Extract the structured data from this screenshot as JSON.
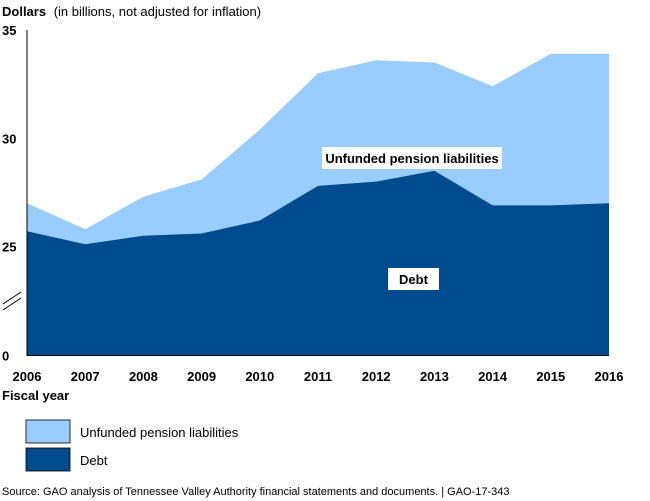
{
  "chart_data": {
    "type": "area",
    "stacked": true,
    "ylabel_bold": "Dollars",
    "ylabel_rest": "(in billions, not adjusted for inflation)",
    "xlabel": "Fiscal year",
    "categories": [
      "2006",
      "2007",
      "2008",
      "2009",
      "2010",
      "2011",
      "2012",
      "2013",
      "2014",
      "2015",
      "2016"
    ],
    "y_ticks": [
      "35",
      "30",
      "25",
      "0"
    ],
    "axis_segments": [
      {
        "from": 0,
        "to": 0,
        "label": "0"
      },
      {
        "from": 25,
        "to": 35
      }
    ],
    "axis_break": true,
    "series": [
      {
        "name": "Debt",
        "color": "#004b8d",
        "top": [
          25.7,
          25.1,
          25.5,
          25.6,
          26.2,
          27.8,
          28.0,
          28.5,
          26.9,
          26.9,
          27.0
        ]
      },
      {
        "name": "Unfunded pension liabilities",
        "color": "#99ccff",
        "top": [
          27.0,
          25.8,
          27.3,
          28.1,
          30.4,
          33.0,
          33.6,
          33.5,
          32.4,
          33.9,
          33.9
        ]
      }
    ],
    "annotations": [
      {
        "text": "Unfunded pension liabilities",
        "series": "Unfunded pension liabilities"
      },
      {
        "text": "Debt",
        "series": "Debt"
      }
    ],
    "legend": [
      {
        "label": "Unfunded pension liabilities",
        "color": "#99ccff"
      },
      {
        "label": "Debt",
        "color": "#004b8d"
      }
    ]
  },
  "source": "Source: GAO analysis of Tennessee Valley Authority financial statements and documents.  |  GAO-17-343"
}
